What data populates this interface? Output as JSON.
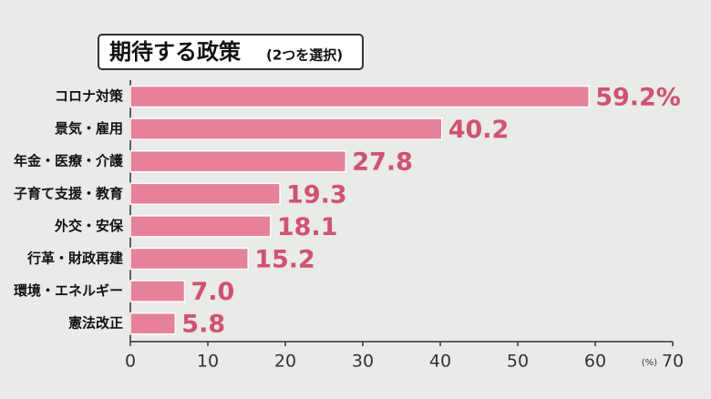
{
  "chart_data": {
    "type": "hbar",
    "title": "期待する政策",
    "subtitle": "(2つを選択)",
    "categories": [
      "コロナ対策",
      "景気・雇用",
      "年金・医療・介護",
      "子育て支援・教育",
      "外交・安保",
      "行革・財政再建",
      "環境・エネルギー",
      "憲法改正"
    ],
    "values": [
      59.2,
      40.2,
      27.8,
      19.3,
      18.1,
      15.2,
      7.0,
      5.8
    ],
    "value_labels": [
      "59.2%",
      "40.2",
      "27.8",
      "19.3",
      "18.1",
      "15.2",
      "7.0",
      "5.8"
    ],
    "color": "#e8809a",
    "xlim": [
      0,
      70
    ],
    "xticks": [
      0,
      10,
      20,
      30,
      40,
      50,
      60,
      70
    ],
    "xlabel": "(%)"
  }
}
